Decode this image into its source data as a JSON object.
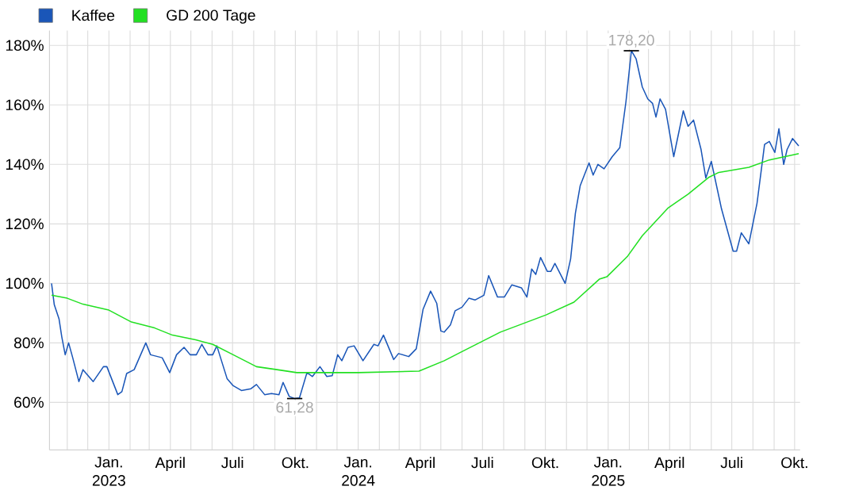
{
  "chart_data": {
    "type": "line",
    "xlim": [
      "2022-10-06",
      "2025-10-09"
    ],
    "ylim": [
      44,
      185
    ],
    "xticks": [
      {
        "value": "2022-11-01",
        "label": null
      },
      {
        "value": "2022-12-01",
        "label": null
      },
      {
        "value": "2023-01-01",
        "label": "Jan. 2023"
      },
      {
        "value": "2023-02-01",
        "label": null
      },
      {
        "value": "2023-03-01",
        "label": null
      },
      {
        "value": "2023-04-01",
        "label": "April"
      },
      {
        "value": "2023-05-01",
        "label": null
      },
      {
        "value": "2023-06-01",
        "label": null
      },
      {
        "value": "2023-07-01",
        "label": "Juli"
      },
      {
        "value": "2023-08-01",
        "label": null
      },
      {
        "value": "2023-09-01",
        "label": null
      },
      {
        "value": "2023-10-01",
        "label": "Okt."
      },
      {
        "value": "2023-11-01",
        "label": null
      },
      {
        "value": "2023-12-01",
        "label": null
      },
      {
        "value": "2024-01-01",
        "label": "Jan. 2024"
      },
      {
        "value": "2024-02-01",
        "label": null
      },
      {
        "value": "2024-03-01",
        "label": null
      },
      {
        "value": "2024-04-01",
        "label": "April"
      },
      {
        "value": "2024-05-01",
        "label": null
      },
      {
        "value": "2024-06-01",
        "label": null
      },
      {
        "value": "2024-07-01",
        "label": "Juli"
      },
      {
        "value": "2024-08-01",
        "label": null
      },
      {
        "value": "2024-09-01",
        "label": null
      },
      {
        "value": "2024-10-01",
        "label": "Okt."
      },
      {
        "value": "2024-11-01",
        "label": null
      },
      {
        "value": "2024-12-01",
        "label": null
      },
      {
        "value": "2025-01-01",
        "label": "Jan. 2025"
      },
      {
        "value": "2025-02-01",
        "label": null
      },
      {
        "value": "2025-03-01",
        "label": null
      },
      {
        "value": "2025-04-01",
        "label": "April"
      },
      {
        "value": "2025-05-01",
        "label": null
      },
      {
        "value": "2025-06-01",
        "label": null
      },
      {
        "value": "2025-07-01",
        "label": "Juli"
      },
      {
        "value": "2025-08-01",
        "label": null
      },
      {
        "value": "2025-09-01",
        "label": null
      },
      {
        "value": "2025-10-01",
        "label": "Okt."
      }
    ],
    "yticks": [
      {
        "value": 60,
        "label": "60%"
      },
      {
        "value": 80,
        "label": "80%"
      },
      {
        "value": 100,
        "label": "100%"
      },
      {
        "value": 120,
        "label": "120%"
      },
      {
        "value": 140,
        "label": "140%"
      },
      {
        "value": 160,
        "label": "160%"
      },
      {
        "value": 180,
        "label": "180%"
      }
    ],
    "grid": true,
    "legend": "top left",
    "series": [
      {
        "name": "Kaffee",
        "color": "#1a56b8",
        "x": [
          "2022-10-09",
          "2022-10-13",
          "2022-10-20",
          "2022-10-24",
          "2022-10-29",
          "2022-11-03",
          "2022-11-09",
          "2022-11-18",
          "2022-11-24",
          "2022-12-09",
          "2022-12-24",
          "2022-12-29",
          "2023-01-14",
          "2023-01-20",
          "2023-01-27",
          "2023-02-07",
          "2023-02-24",
          "2023-03-03",
          "2023-03-20",
          "2023-03-31",
          "2023-04-10",
          "2023-04-21",
          "2023-04-30",
          "2023-05-09",
          "2023-05-17",
          "2023-05-26",
          "2023-06-02",
          "2023-06-08",
          "2023-06-23",
          "2023-07-02",
          "2023-07-14",
          "2023-07-28",
          "2023-08-05",
          "2023-08-17",
          "2023-08-27",
          "2023-09-07",
          "2023-09-13",
          "2023-09-22",
          "2023-09-30",
          "2023-10-07",
          "2023-10-18",
          "2023-10-26",
          "2023-11-06",
          "2023-11-16",
          "2023-11-24",
          "2023-12-02",
          "2023-12-08",
          "2023-12-17",
          "2023-12-26",
          "2024-01-08",
          "2024-01-24",
          "2024-01-30",
          "2024-02-07",
          "2024-02-22",
          "2024-02-29",
          "2024-03-15",
          "2024-03-26",
          "2024-04-05",
          "2024-04-16",
          "2024-04-25",
          "2024-05-01",
          "2024-05-06",
          "2024-05-15",
          "2024-05-22",
          "2024-06-01",
          "2024-06-11",
          "2024-06-20",
          "2024-07-03",
          "2024-07-10",
          "2024-07-23",
          "2024-08-02",
          "2024-08-13",
          "2024-08-27",
          "2024-09-04",
          "2024-09-11",
          "2024-09-17",
          "2024-09-24",
          "2024-10-04",
          "2024-10-09",
          "2024-10-15",
          "2024-10-30",
          "2024-11-07",
          "2024-11-14",
          "2024-11-21",
          "2024-12-04",
          "2024-12-10",
          "2024-12-17",
          "2024-12-26",
          "2025-01-07",
          "2025-01-18",
          "2025-01-27",
          "2025-02-04",
          "2025-02-11",
          "2025-02-20",
          "2025-02-28",
          "2025-03-07",
          "2025-03-12",
          "2025-03-18",
          "2025-03-26",
          "2025-04-07",
          "2025-04-21",
          "2025-04-28",
          "2025-05-06",
          "2025-05-17",
          "2025-05-24",
          "2025-06-01",
          "2025-06-16",
          "2025-07-03",
          "2025-07-08",
          "2025-07-15",
          "2025-07-26",
          "2025-08-07",
          "2025-08-18",
          "2025-08-25",
          "2025-09-02",
          "2025-09-08",
          "2025-09-15",
          "2025-09-20",
          "2025-09-28",
          "2025-10-07"
        ],
        "values": [
          100,
          92.8,
          88,
          82,
          76,
          80,
          75,
          67,
          71,
          67,
          72,
          72,
          62.6,
          63.6,
          69.7,
          71,
          80,
          76,
          75,
          70,
          76,
          78.5,
          76,
          76,
          79.5,
          76,
          76,
          79,
          68,
          65.6,
          64,
          64.6,
          66,
          62.6,
          63,
          62.6,
          66.7,
          62,
          61.28,
          61.5,
          70,
          68.7,
          72,
          68.7,
          69,
          76,
          74,
          78.5,
          79,
          74,
          79.5,
          79,
          82.6,
          74.4,
          76.4,
          75.4,
          78,
          91.3,
          97.4,
          93.3,
          84,
          83.6,
          86,
          90.8,
          92,
          95,
          94.4,
          96,
          102.6,
          95.4,
          95.4,
          99.5,
          98.5,
          95.4,
          104.8,
          103,
          108.7,
          104,
          104,
          106.7,
          100,
          108.2,
          123.6,
          132.8,
          140.5,
          136.4,
          140,
          138.5,
          142.6,
          145.6,
          161,
          178.2,
          175.4,
          166,
          162,
          160.5,
          155.9,
          162,
          158.5,
          142.6,
          158,
          152.8,
          154.9,
          145,
          135.4,
          141,
          125,
          110.8,
          110.8,
          117,
          113.3,
          127,
          146.7,
          147.7,
          144,
          152,
          140,
          145,
          148.7,
          146.2
        ]
      },
      {
        "name": "GD 200 Tage",
        "color": "#22e022",
        "x": [
          "2022-10-09",
          "2022-11-01",
          "2022-11-24",
          "2023-01-01",
          "2023-02-03",
          "2023-03-09",
          "2023-04-04",
          "2023-05-08",
          "2023-06-02",
          "2023-07-02",
          "2023-08-05",
          "2023-09-04",
          "2023-10-03",
          "2024-01-01",
          "2024-03-30",
          "2024-05-06",
          "2024-05-28",
          "2024-07-27",
          "2024-10-02",
          "2024-11-12",
          "2024-12-19",
          "2024-12-30",
          "2025-01-29",
          "2025-02-20",
          "2025-03-30",
          "2025-04-28",
          "2025-05-28",
          "2025-06-12",
          "2025-07-26",
          "2025-08-25",
          "2025-10-07"
        ],
        "values": [
          96,
          95,
          93,
          91,
          87,
          85,
          82.6,
          81,
          79.5,
          76,
          72,
          71,
          70,
          70,
          70.5,
          74,
          76.6,
          83.6,
          89.4,
          93.7,
          101.4,
          102.2,
          109,
          116,
          125.4,
          130,
          135.6,
          137.3,
          139,
          141.5,
          143.6
        ]
      }
    ],
    "annotations": [
      {
        "text": "178,20",
        "x": "2025-02-04",
        "y": 178.2
      },
      {
        "text": "61,28",
        "x": "2023-09-30",
        "y": 61.28
      }
    ]
  }
}
